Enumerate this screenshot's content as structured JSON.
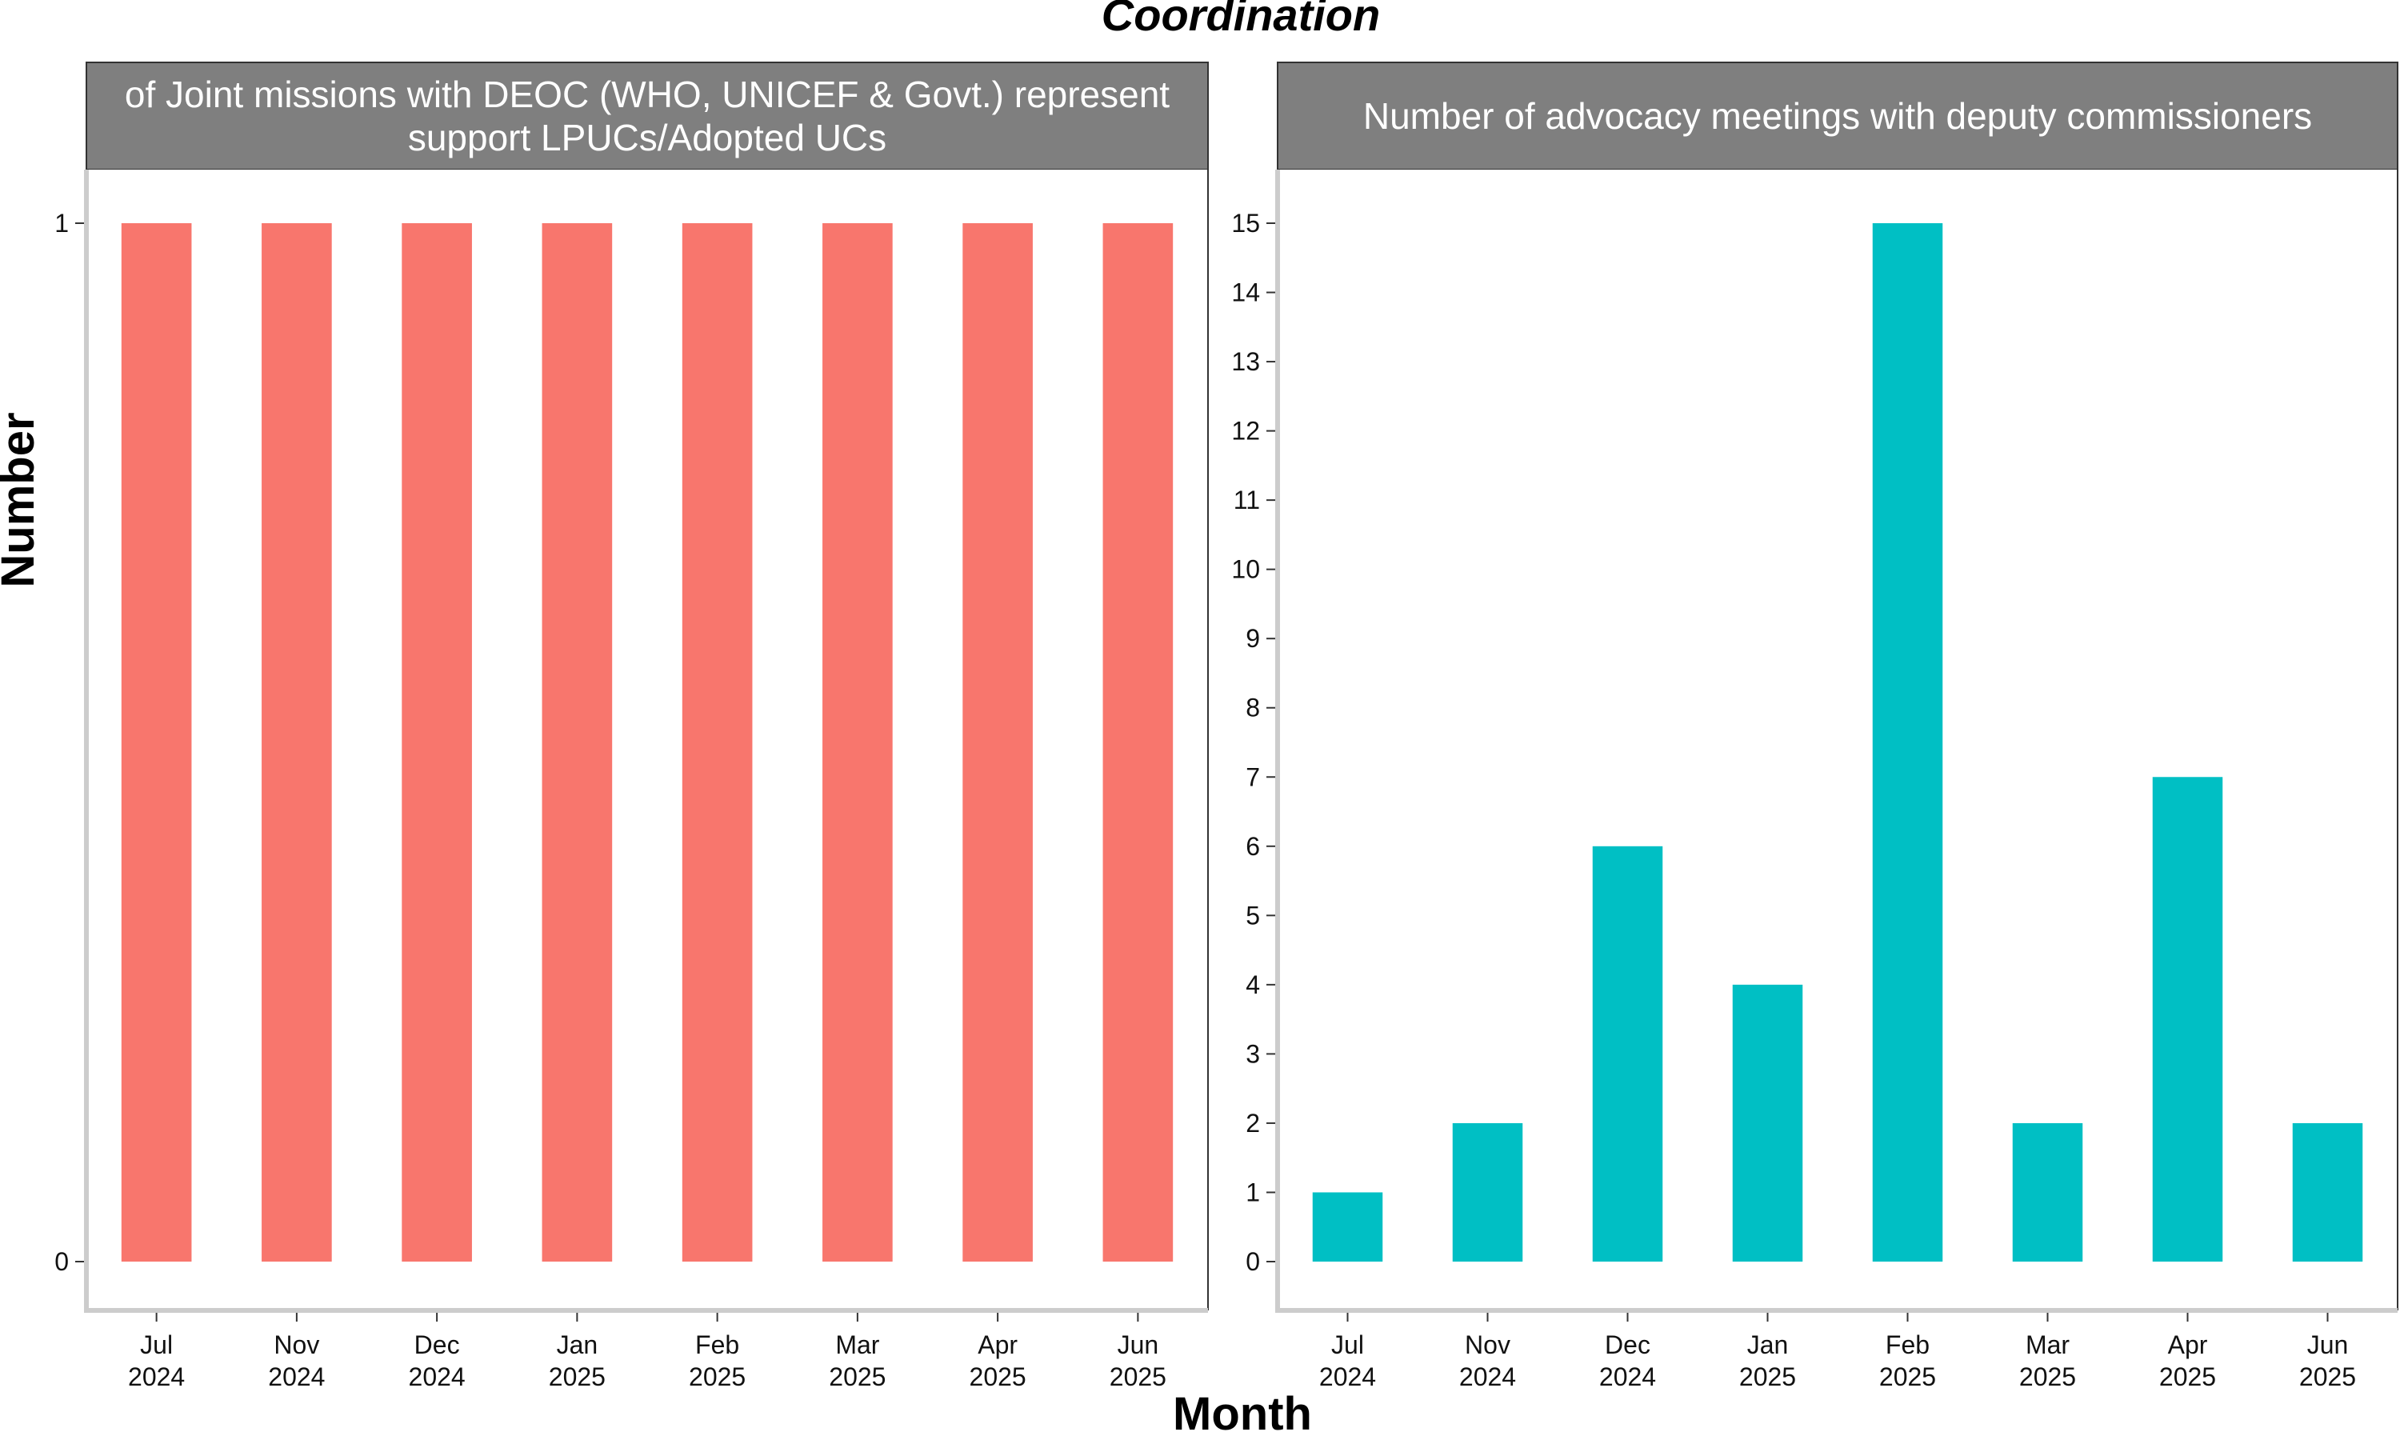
{
  "title": "Coordination",
  "xlabel": "Month",
  "ylabel": "Number",
  "chart_data": [
    {
      "type": "bar",
      "title": "of Joint missions with DEOC (WHO, UNICEF & Govt.) represen… support LPUCs/Adopted UCs",
      "strip_lines": [
        "of Joint missions with DEOC (WHO, UNICEF & Govt.) represent",
        "support LPUCs/Adopted UCs"
      ],
      "categories": [
        [
          "Jul",
          "2024"
        ],
        [
          "Nov",
          "2024"
        ],
        [
          "Dec",
          "2024"
        ],
        [
          "Jan",
          "2025"
        ],
        [
          "Feb",
          "2025"
        ],
        [
          "Mar",
          "2025"
        ],
        [
          "Apr",
          "2025"
        ],
        [
          "Jun",
          "2025"
        ]
      ],
      "values": [
        1,
        1,
        1,
        1,
        1,
        1,
        1,
        1
      ],
      "ylim": [
        0,
        1
      ],
      "yticks": [
        0,
        1
      ],
      "color": "#F8766D",
      "xlabel": "Month",
      "ylabel": "Number"
    },
    {
      "type": "bar",
      "title": "Number of advocacy meetings with deputy commissioners",
      "strip_lines": [
        "Number of advocacy meetings with deputy commissioners"
      ],
      "categories": [
        [
          "Jul",
          "2024"
        ],
        [
          "Nov",
          "2024"
        ],
        [
          "Dec",
          "2024"
        ],
        [
          "Jan",
          "2025"
        ],
        [
          "Feb",
          "2025"
        ],
        [
          "Mar",
          "2025"
        ],
        [
          "Apr",
          "2025"
        ],
        [
          "Jun",
          "2025"
        ]
      ],
      "values": [
        1,
        2,
        6,
        4,
        15,
        2,
        7,
        2
      ],
      "ylim": [
        0,
        15
      ],
      "yticks": [
        0,
        1,
        2,
        3,
        4,
        5,
        6,
        7,
        8,
        9,
        10,
        11,
        12,
        13,
        14,
        15
      ],
      "color": "#00BFC4",
      "xlabel": "Month",
      "ylabel": "Number"
    }
  ]
}
